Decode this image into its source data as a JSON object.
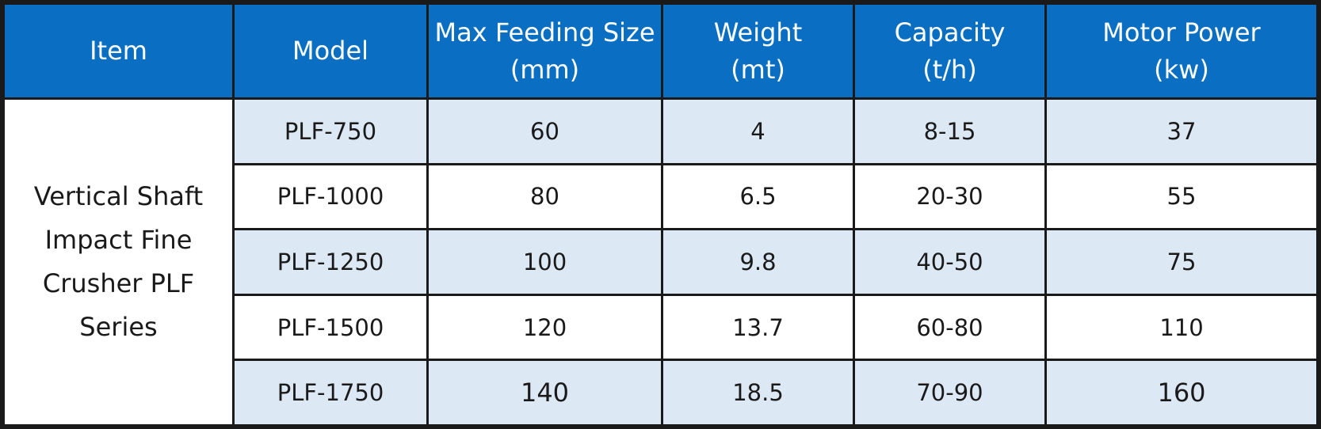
{
  "headers": [
    {
      "line1": "Item",
      "line2": ""
    },
    {
      "line1": "Model",
      "line2": ""
    },
    {
      "line1": "Max Feeding Size",
      "line2": "(mm)"
    },
    {
      "line1": "Weight",
      "line2": "(mt)"
    },
    {
      "line1": "Capacity",
      "line2": "(t/h)"
    },
    {
      "line1": "Motor Power",
      "line2": "(kw)"
    }
  ],
  "item": {
    "lines": [
      "Vertical Shaft",
      "Impact Fine",
      "Crusher PLF",
      "Series"
    ]
  },
  "rows": [
    {
      "model": "PLF-750",
      "feed": "60",
      "weight": "4",
      "capacity": "8-15",
      "power": "37"
    },
    {
      "model": "PLF-1000",
      "feed": "80",
      "weight": "6.5",
      "capacity": "20-30",
      "power": "55"
    },
    {
      "model": "PLF-1250",
      "feed": "100",
      "weight": "9.8",
      "capacity": "40-50",
      "power": "75"
    },
    {
      "model": "PLF-1500",
      "feed": "120",
      "weight": "13.7",
      "capacity": "60-80",
      "power": "110"
    },
    {
      "model": "PLF-1750",
      "feed": "140",
      "weight": "18.5",
      "capacity": "70-90",
      "power": "160"
    }
  ],
  "colors": {
    "header_bg": "#0a6fc2",
    "header_text": "#ffffff",
    "row_shade": "#dde8f5",
    "border": "#1a1a1a"
  }
}
